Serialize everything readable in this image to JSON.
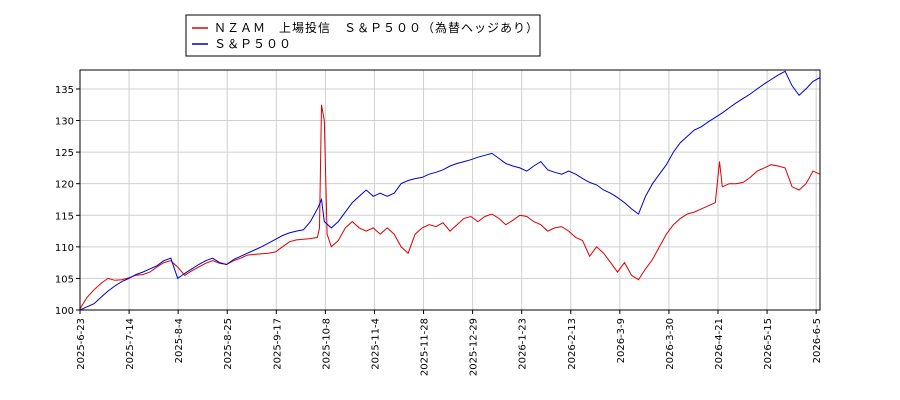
{
  "chart_data": {
    "type": "line",
    "title": "",
    "xlabel": "",
    "ylabel": "",
    "ylim": [
      100,
      138
    ],
    "grid": true,
    "legend_position": "top-left",
    "y_ticks": [
      100,
      105,
      110,
      115,
      120,
      125,
      130,
      135
    ],
    "x_ticks": [
      "2025-6-23",
      "2025-7-14",
      "2025-8-4",
      "2025-8-25",
      "2025-9-17",
      "2025-10-8",
      "2025-11-4",
      "2025-11-28",
      "2025-12-29",
      "2026-1-23",
      "2026-2-13",
      "2026-3-9",
      "2026-3-30",
      "2026-4-21",
      "2026-5-15",
      "2026-6-5"
    ],
    "series": [
      {
        "name": "ＮＺＡＭ　上場投信　Ｓ＆Ｐ５００（為替ヘッジあり）",
        "color": "#dd0000",
        "points": [
          [
            0,
            100.2
          ],
          [
            1,
            102
          ],
          [
            2,
            103.2
          ],
          [
            3,
            104.2
          ],
          [
            4,
            105
          ],
          [
            5,
            104.7
          ],
          [
            6,
            104.8
          ],
          [
            7,
            105.1
          ],
          [
            8,
            105.5
          ],
          [
            9,
            105.6
          ],
          [
            10,
            106
          ],
          [
            11,
            106.8
          ],
          [
            12,
            107.5
          ],
          [
            13,
            107.8
          ],
          [
            14,
            106.8
          ],
          [
            15,
            105.5
          ],
          [
            16,
            106.2
          ],
          [
            17,
            106.8
          ],
          [
            18,
            107.4
          ],
          [
            19,
            107.8
          ],
          [
            20,
            107.4
          ],
          [
            21,
            107.2
          ],
          [
            22,
            107.8
          ],
          [
            23,
            108.2
          ],
          [
            24,
            108.7
          ],
          [
            25,
            108.8
          ],
          [
            26,
            108.9
          ],
          [
            27,
            109
          ],
          [
            28,
            109.2
          ],
          [
            29,
            110
          ],
          [
            30,
            110.8
          ],
          [
            31,
            111.1
          ],
          [
            32,
            111.2
          ],
          [
            33,
            111.3
          ],
          [
            34,
            111.5
          ],
          [
            34.3,
            113
          ],
          [
            34.6,
            132.5
          ],
          [
            35,
            130
          ],
          [
            35.4,
            112
          ],
          [
            36,
            110
          ],
          [
            37,
            111
          ],
          [
            38,
            113
          ],
          [
            39,
            114
          ],
          [
            40,
            113
          ],
          [
            41,
            112.5
          ],
          [
            42,
            113
          ],
          [
            43,
            112
          ],
          [
            44,
            113
          ],
          [
            45,
            112
          ],
          [
            46,
            110
          ],
          [
            47,
            109
          ],
          [
            48,
            112
          ],
          [
            49,
            113
          ],
          [
            50,
            113.5
          ],
          [
            51,
            113.2
          ],
          [
            52,
            113.8
          ],
          [
            53,
            112.5
          ],
          [
            54,
            113.5
          ],
          [
            55,
            114.5
          ],
          [
            56,
            114.8
          ],
          [
            57,
            114
          ],
          [
            58,
            114.8
          ],
          [
            59,
            115.2
          ],
          [
            60,
            114.5
          ],
          [
            61,
            113.5
          ],
          [
            62,
            114.2
          ],
          [
            63,
            115
          ],
          [
            64,
            114.8
          ],
          [
            65,
            114
          ],
          [
            66,
            113.5
          ],
          [
            67,
            112.5
          ],
          [
            68,
            113
          ],
          [
            69,
            113.2
          ],
          [
            70,
            112.5
          ],
          [
            71,
            111.5
          ],
          [
            72,
            111
          ],
          [
            73,
            108.5
          ],
          [
            74,
            110
          ],
          [
            75,
            109
          ],
          [
            76,
            107.5
          ],
          [
            77,
            106
          ],
          [
            78,
            107.5
          ],
          [
            79,
            105.5
          ],
          [
            80,
            104.8
          ],
          [
            81,
            106.5
          ],
          [
            82,
            108
          ],
          [
            83,
            110
          ],
          [
            84,
            112
          ],
          [
            85,
            113.5
          ],
          [
            86,
            114.5
          ],
          [
            87,
            115.2
          ],
          [
            88,
            115.5
          ],
          [
            89,
            116
          ],
          [
            90,
            116.5
          ],
          [
            91,
            117
          ],
          [
            91.6,
            123.5
          ],
          [
            92,
            119.5
          ],
          [
            93,
            120
          ],
          [
            94,
            120
          ],
          [
            95,
            120.2
          ],
          [
            96,
            121
          ],
          [
            97,
            122
          ],
          [
            98,
            122.5
          ],
          [
            99,
            123
          ],
          [
            100,
            122.8
          ],
          [
            101,
            122.5
          ],
          [
            102,
            119.5
          ],
          [
            103,
            119
          ],
          [
            104,
            120
          ],
          [
            105,
            122
          ],
          [
            106,
            121.5
          ]
        ]
      },
      {
        "name": "Ｓ＆Ｐ５００",
        "color": "#0000cc",
        "points": [
          [
            0,
            100
          ],
          [
            1,
            100.5
          ],
          [
            2,
            101
          ],
          [
            3,
            102
          ],
          [
            4,
            103
          ],
          [
            5,
            103.8
          ],
          [
            6,
            104.5
          ],
          [
            7,
            105
          ],
          [
            8,
            105.6
          ],
          [
            9,
            106
          ],
          [
            10,
            106.5
          ],
          [
            11,
            107
          ],
          [
            12,
            107.8
          ],
          [
            13,
            108.2
          ],
          [
            14,
            105
          ],
          [
            15,
            105.8
          ],
          [
            16,
            106.5
          ],
          [
            17,
            107.2
          ],
          [
            18,
            107.8
          ],
          [
            19,
            108.2
          ],
          [
            20,
            107.5
          ],
          [
            21,
            107.2
          ],
          [
            22,
            108
          ],
          [
            23,
            108.5
          ],
          [
            24,
            109
          ],
          [
            25,
            109.5
          ],
          [
            26,
            110
          ],
          [
            27,
            110.6
          ],
          [
            28,
            111.2
          ],
          [
            29,
            111.8
          ],
          [
            30,
            112.2
          ],
          [
            31,
            112.5
          ],
          [
            32,
            112.7
          ],
          [
            33,
            114
          ],
          [
            34,
            116
          ],
          [
            34.6,
            117.5
          ],
          [
            35,
            114
          ],
          [
            36,
            113
          ],
          [
            37,
            114
          ],
          [
            38,
            115.5
          ],
          [
            39,
            117
          ],
          [
            40,
            118
          ],
          [
            41,
            119
          ],
          [
            42,
            118
          ],
          [
            43,
            118.5
          ],
          [
            44,
            118
          ],
          [
            45,
            118.5
          ],
          [
            46,
            120
          ],
          [
            47,
            120.5
          ],
          [
            48,
            120.8
          ],
          [
            49,
            121
          ],
          [
            50,
            121.5
          ],
          [
            51,
            121.8
          ],
          [
            52,
            122.2
          ],
          [
            53,
            122.8
          ],
          [
            54,
            123.2
          ],
          [
            55,
            123.5
          ],
          [
            56,
            123.8
          ],
          [
            57,
            124.2
          ],
          [
            58,
            124.5
          ],
          [
            59,
            124.8
          ],
          [
            60,
            124
          ],
          [
            61,
            123.2
          ],
          [
            62,
            122.8
          ],
          [
            63,
            122.5
          ],
          [
            64,
            122
          ],
          [
            65,
            122.8
          ],
          [
            66,
            123.5
          ],
          [
            67,
            122.2
          ],
          [
            68,
            121.8
          ],
          [
            69,
            121.5
          ],
          [
            70,
            122
          ],
          [
            71,
            121.5
          ],
          [
            72,
            120.8
          ],
          [
            73,
            120.2
          ],
          [
            74,
            119.8
          ],
          [
            75,
            119
          ],
          [
            76,
            118.5
          ],
          [
            77,
            117.8
          ],
          [
            78,
            117
          ],
          [
            79,
            116
          ],
          [
            80,
            115.2
          ],
          [
            81,
            118
          ],
          [
            82,
            120
          ],
          [
            83,
            121.5
          ],
          [
            84,
            123
          ],
          [
            85,
            125
          ],
          [
            86,
            126.5
          ],
          [
            87,
            127.5
          ],
          [
            88,
            128.5
          ],
          [
            89,
            129
          ],
          [
            90,
            129.8
          ],
          [
            91,
            130.5
          ],
          [
            92,
            131.2
          ],
          [
            93,
            132
          ],
          [
            94,
            132.8
          ],
          [
            95,
            133.5
          ],
          [
            96,
            134.2
          ],
          [
            97,
            135
          ],
          [
            98,
            135.8
          ],
          [
            99,
            136.5
          ],
          [
            100,
            137.2
          ],
          [
            101,
            137.8
          ],
          [
            102,
            135.5
          ],
          [
            103,
            134
          ],
          [
            104,
            135
          ],
          [
            105,
            136.2
          ],
          [
            106,
            136.8
          ]
        ]
      }
    ]
  }
}
